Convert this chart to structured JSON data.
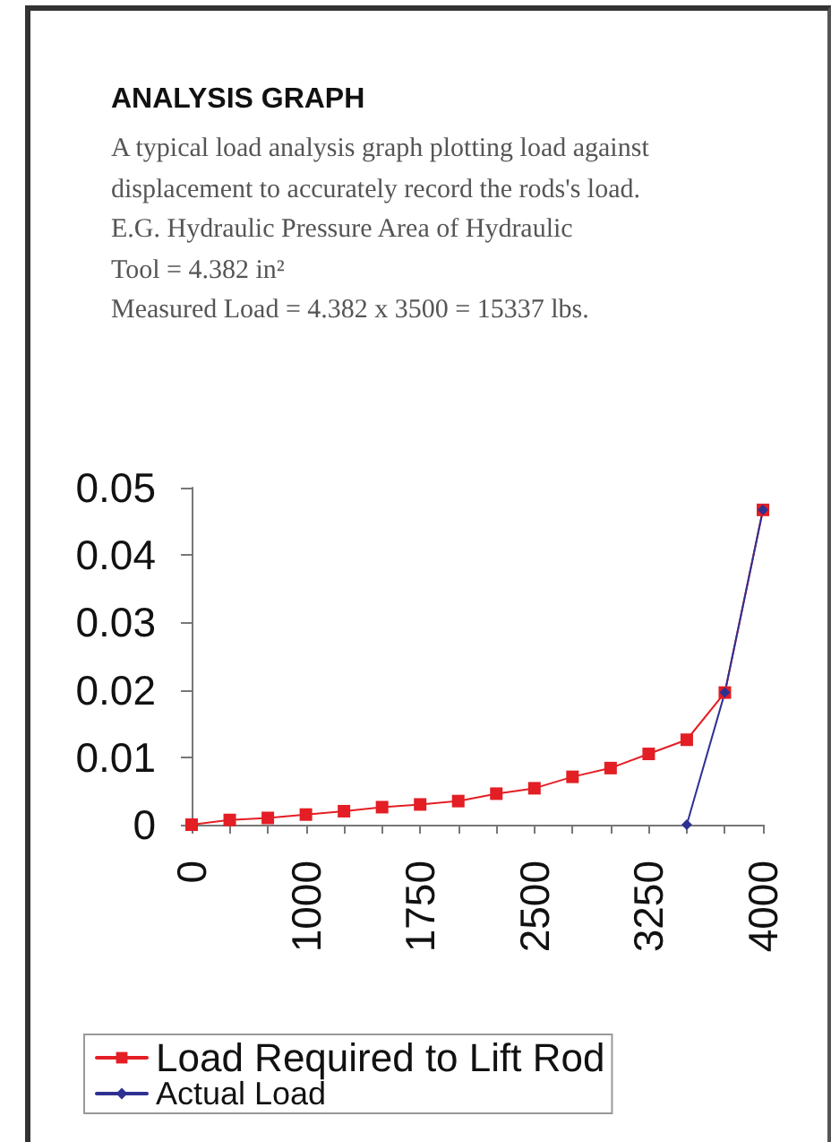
{
  "chart_data": {
    "type": "line",
    "title": "ANALYSIS GRAPH",
    "subtitle": "A typical load analysis graph plotting load against displacement to accurately record the rods's load.",
    "annotations": [
      "E.G. Hydraulic Pressure Area of Hydraulic",
      "Tool = 4.382 in²",
      "Measured Load = 4.382 x 3500 = 15337 lbs."
    ],
    "categories": [
      "0",
      null,
      null,
      "1000",
      null,
      null,
      "1750",
      null,
      null,
      "2500",
      null,
      null,
      "3250",
      null,
      null,
      "4000"
    ],
    "series": [
      {
        "name": "Load Required to Lift Rod",
        "color": "#e31e24",
        "marker": "square",
        "values": [
          0,
          0.0007,
          0.001,
          0.0015,
          0.002,
          0.0026,
          0.003,
          0.0035,
          0.0046,
          0.0054,
          0.0071,
          0.0084,
          0.0105,
          0.0126,
          0.0196,
          0.0467
        ]
      },
      {
        "name": "Actual Load",
        "color": "#2e3192",
        "marker": "diamond",
        "values": [
          null,
          null,
          null,
          null,
          null,
          null,
          null,
          null,
          null,
          null,
          null,
          null,
          null,
          0,
          0.0196,
          0.0467
        ]
      }
    ],
    "ylim": [
      0,
      0.05
    ],
    "yticks": [
      0,
      0.01,
      0.02,
      0.03,
      0.04,
      0.05
    ],
    "grid": false,
    "legend": "bottom left",
    "line_style": "solid"
  }
}
